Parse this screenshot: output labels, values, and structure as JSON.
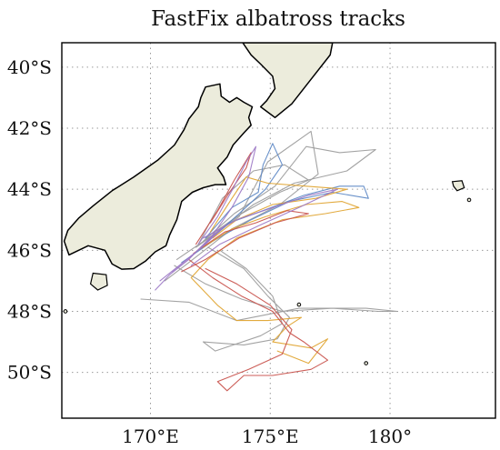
{
  "map": {
    "title": "FastFix albatross tracks",
    "lon_range": [
      166.3,
      184.4
    ],
    "lat_range": [
      -51.5,
      -39.2
    ],
    "lat_ticks": [
      {
        "value": -40,
        "label": "40°S"
      },
      {
        "value": -42,
        "label": "42°S"
      },
      {
        "value": -44,
        "label": "44°S"
      },
      {
        "value": -46,
        "label": "46°S"
      },
      {
        "value": -48,
        "label": "48°S"
      },
      {
        "value": -50,
        "label": "50°S"
      }
    ],
    "lon_ticks": [
      {
        "value": 170,
        "label": "170°E"
      },
      {
        "value": 175,
        "label": "175°E"
      },
      {
        "value": 180,
        "label": "180°"
      }
    ],
    "gridlines": true,
    "colors": {
      "land": "#ececdc",
      "coastline": "#000000",
      "gridline": "#9a9a9a"
    },
    "land": {
      "south_island": [
        [
          168.1,
          -46.0
        ],
        [
          167.4,
          -45.85
        ],
        [
          166.6,
          -46.15
        ],
        [
          166.4,
          -45.7
        ],
        [
          166.55,
          -45.35
        ],
        [
          167.0,
          -44.95
        ],
        [
          167.6,
          -44.55
        ],
        [
          168.4,
          -44.05
        ],
        [
          169.3,
          -43.6
        ],
        [
          170.3,
          -43.05
        ],
        [
          171.0,
          -42.55
        ],
        [
          171.4,
          -42.05
        ],
        [
          171.6,
          -41.7
        ],
        [
          172.0,
          -41.3
        ],
        [
          172.1,
          -41.0
        ],
        [
          172.3,
          -40.65
        ],
        [
          172.9,
          -40.55
        ],
        [
          172.95,
          -40.95
        ],
        [
          173.3,
          -41.15
        ],
        [
          173.6,
          -41.0
        ],
        [
          173.9,
          -41.15
        ],
        [
          174.25,
          -41.3
        ],
        [
          174.1,
          -41.65
        ],
        [
          174.2,
          -41.9
        ],
        [
          173.9,
          -42.15
        ],
        [
          173.45,
          -42.55
        ],
        [
          173.2,
          -42.95
        ],
        [
          172.8,
          -43.3
        ],
        [
          173.05,
          -43.6
        ],
        [
          173.15,
          -43.85
        ],
        [
          172.7,
          -43.85
        ],
        [
          172.2,
          -43.95
        ],
        [
          171.75,
          -44.1
        ],
        [
          171.3,
          -44.4
        ],
        [
          171.1,
          -45.0
        ],
        [
          170.8,
          -45.5
        ],
        [
          170.65,
          -45.85
        ],
        [
          170.2,
          -46.05
        ],
        [
          169.8,
          -46.35
        ],
        [
          169.3,
          -46.6
        ],
        [
          168.8,
          -46.62
        ],
        [
          168.4,
          -46.45
        ],
        [
          168.1,
          -46.0
        ]
      ],
      "north_island": [
        [
          174.6,
          -41.3
        ],
        [
          175.2,
          -41.65
        ],
        [
          175.9,
          -41.2
        ],
        [
          176.6,
          -40.5
        ],
        [
          177.5,
          -39.6
        ],
        [
          177.6,
          -39.2
        ],
        [
          173.85,
          -39.2
        ],
        [
          174.2,
          -39.6
        ],
        [
          174.6,
          -39.9
        ],
        [
          175.1,
          -40.3
        ],
        [
          175.2,
          -40.7
        ],
        [
          174.85,
          -41.1
        ],
        [
          174.6,
          -41.3
        ]
      ],
      "stewart_island": [
        [
          167.6,
          -46.75
        ],
        [
          168.15,
          -46.8
        ],
        [
          168.2,
          -47.15
        ],
        [
          167.8,
          -47.3
        ],
        [
          167.5,
          -47.1
        ],
        [
          167.6,
          -46.75
        ]
      ],
      "chatham_islands": [
        [
          182.6,
          -43.75
        ],
        [
          183.0,
          -43.72
        ],
        [
          183.1,
          -43.95
        ],
        [
          182.8,
          -44.05
        ],
        [
          182.65,
          -43.9
        ],
        [
          182.6,
          -43.75
        ]
      ],
      "small_islets": [
        [
          183.3,
          -44.35
        ],
        [
          166.45,
          -48.0
        ],
        [
          179.0,
          -49.7
        ],
        [
          176.2,
          -47.78
        ]
      ]
    }
  },
  "chart_data": {
    "type": "map-tracks",
    "title": "FastFix albatross tracks",
    "series": [
      {
        "color": "#9b9b9b",
        "points": [
          [
            172.2,
            -45.7
          ],
          [
            173.5,
            -44.8
          ],
          [
            175.2,
            -43.9
          ],
          [
            176.5,
            -42.6
          ],
          [
            177.9,
            -42.8
          ],
          [
            179.4,
            -42.7
          ],
          [
            178.2,
            -43.4
          ],
          [
            176.0,
            -43.8
          ],
          [
            174.3,
            -44.5
          ],
          [
            172.6,
            -45.5
          ],
          [
            171.1,
            -46.3
          ]
        ]
      },
      {
        "color": "#9b9b9b",
        "points": [
          [
            171.9,
            -45.9
          ],
          [
            173.7,
            -44.9
          ],
          [
            174.9,
            -43.1
          ],
          [
            176.7,
            -42.1
          ],
          [
            177.0,
            -43.5
          ],
          [
            175.4,
            -44.5
          ],
          [
            173.4,
            -45.3
          ],
          [
            171.6,
            -46.4
          ],
          [
            170.6,
            -47.0
          ]
        ]
      },
      {
        "color": "#9b9b9b",
        "points": [
          [
            171.0,
            -46.5
          ],
          [
            172.3,
            -47.1
          ],
          [
            173.8,
            -47.6
          ],
          [
            175.5,
            -48.0
          ],
          [
            177.6,
            -47.9
          ],
          [
            179.5,
            -48.0
          ],
          [
            180.3,
            -48.0
          ],
          [
            179.0,
            -47.9
          ],
          [
            176.2,
            -47.9
          ],
          [
            173.6,
            -48.3
          ],
          [
            171.6,
            -47.7
          ],
          [
            169.6,
            -47.6
          ]
        ]
      },
      {
        "color": "#9b9b9b",
        "points": [
          [
            172.4,
            -45.9
          ],
          [
            173.9,
            -46.6
          ],
          [
            174.9,
            -47.5
          ],
          [
            175.8,
            -48.2
          ],
          [
            175.3,
            -48.9
          ],
          [
            173.9,
            -49.1
          ],
          [
            172.2,
            -49.0
          ],
          [
            172.7,
            -49.3
          ],
          [
            174.6,
            -48.8
          ],
          [
            175.5,
            -48.4
          ],
          [
            175.1,
            -47.5
          ],
          [
            174.0,
            -46.6
          ],
          [
            172.9,
            -46.0
          ]
        ]
      },
      {
        "color": "#9b9b9b",
        "points": [
          [
            172.0,
            -45.8
          ],
          [
            173.0,
            -44.3
          ],
          [
            174.3,
            -43.4
          ],
          [
            175.6,
            -43.2
          ],
          [
            176.6,
            -43.7
          ],
          [
            175.4,
            -44.1
          ],
          [
            173.8,
            -44.8
          ],
          [
            172.3,
            -45.6
          ]
        ]
      },
      {
        "color": "#5b87c4",
        "points": [
          [
            172.1,
            -45.9
          ],
          [
            173.3,
            -45.1
          ],
          [
            174.7,
            -44.7
          ],
          [
            176.4,
            -44.2
          ],
          [
            177.9,
            -43.9
          ],
          [
            178.9,
            -43.9
          ],
          [
            179.1,
            -44.3
          ],
          [
            177.6,
            -44.1
          ],
          [
            175.8,
            -44.4
          ],
          [
            174.2,
            -45.0
          ],
          [
            172.6,
            -45.7
          ],
          [
            171.3,
            -46.4
          ]
        ]
      },
      {
        "color": "#5b87c4",
        "points": [
          [
            172.3,
            -45.6
          ],
          [
            173.4,
            -44.6
          ],
          [
            174.5,
            -44.1
          ],
          [
            174.7,
            -43.2
          ],
          [
            175.1,
            -42.5
          ],
          [
            175.5,
            -43.2
          ],
          [
            174.8,
            -44.0
          ],
          [
            173.7,
            -44.8
          ],
          [
            172.4,
            -45.7
          ]
        ]
      },
      {
        "color": "#e0a32e",
        "points": [
          [
            172.2,
            -45.9
          ],
          [
            173.4,
            -45.3
          ],
          [
            174.8,
            -44.9
          ],
          [
            176.5,
            -44.5
          ],
          [
            178.0,
            -44.4
          ],
          [
            178.7,
            -44.6
          ],
          [
            177.3,
            -44.8
          ],
          [
            175.5,
            -45.0
          ],
          [
            173.6,
            -45.6
          ],
          [
            172.4,
            -46.3
          ],
          [
            171.7,
            -46.9
          ],
          [
            172.8,
            -47.8
          ],
          [
            173.6,
            -48.3
          ],
          [
            174.9,
            -48.3
          ],
          [
            176.3,
            -48.2
          ],
          [
            175.7,
            -48.5
          ],
          [
            175.1,
            -49.0
          ],
          [
            176.7,
            -49.2
          ],
          [
            177.4,
            -48.9
          ],
          [
            176.6,
            -49.7
          ],
          [
            175.3,
            -49.3
          ]
        ]
      },
      {
        "color": "#e0a32e",
        "points": [
          [
            172.5,
            -45.4
          ],
          [
            173.4,
            -44.3
          ],
          [
            174.0,
            -43.6
          ],
          [
            174.9,
            -43.8
          ],
          [
            176.5,
            -43.9
          ],
          [
            178.2,
            -44.0
          ],
          [
            176.9,
            -44.3
          ],
          [
            175.1,
            -44.5
          ],
          [
            173.6,
            -45.0
          ],
          [
            172.6,
            -45.6
          ]
        ]
      },
      {
        "color": "#c8504a",
        "points": [
          [
            171.8,
            -46.1
          ],
          [
            173.1,
            -45.4
          ],
          [
            174.4,
            -45.1
          ],
          [
            175.7,
            -44.7
          ],
          [
            176.6,
            -44.8
          ],
          [
            175.2,
            -45.1
          ],
          [
            173.7,
            -45.6
          ],
          [
            172.3,
            -46.3
          ],
          [
            171.3,
            -46.7
          ]
        ]
      },
      {
        "color": "#c8504a",
        "points": [
          [
            171.6,
            -46.3
          ],
          [
            172.6,
            -46.9
          ],
          [
            173.8,
            -47.5
          ],
          [
            175.1,
            -48.0
          ],
          [
            175.8,
            -48.7
          ],
          [
            176.4,
            -49.0
          ],
          [
            177.4,
            -49.6
          ],
          [
            176.7,
            -49.9
          ],
          [
            175.1,
            -50.1
          ],
          [
            173.9,
            -50.1
          ],
          [
            173.2,
            -50.6
          ],
          [
            172.8,
            -50.3
          ],
          [
            174.1,
            -49.9
          ],
          [
            175.5,
            -49.4
          ],
          [
            175.9,
            -48.6
          ],
          [
            175.0,
            -47.8
          ],
          [
            173.6,
            -47.1
          ],
          [
            172.3,
            -46.6
          ]
        ]
      },
      {
        "color": "#c8504a",
        "points": [
          [
            172.5,
            -45.1
          ],
          [
            173.3,
            -44.1
          ],
          [
            174.0,
            -43.3
          ],
          [
            174.2,
            -42.8
          ],
          [
            173.5,
            -43.7
          ],
          [
            172.8,
            -44.7
          ],
          [
            171.9,
            -45.8
          ]
        ]
      },
      {
        "color": "#9c78c6",
        "points": [
          [
            172.0,
            -45.8
          ],
          [
            172.8,
            -44.9
          ],
          [
            173.5,
            -43.9
          ],
          [
            174.0,
            -43.1
          ],
          [
            174.4,
            -42.6
          ],
          [
            174.1,
            -43.6
          ],
          [
            173.4,
            -44.6
          ],
          [
            172.6,
            -45.5
          ],
          [
            171.6,
            -46.3
          ],
          [
            170.8,
            -46.8
          ],
          [
            170.2,
            -47.3
          ]
        ]
      },
      {
        "color": "#9c78c6",
        "points": [
          [
            172.2,
            -45.6
          ],
          [
            173.6,
            -45.0
          ],
          [
            175.1,
            -44.6
          ],
          [
            176.6,
            -44.2
          ],
          [
            177.8,
            -44.0
          ],
          [
            176.2,
            -44.6
          ],
          [
            174.5,
            -45.2
          ],
          [
            172.9,
            -45.8
          ],
          [
            171.7,
            -46.5
          ]
        ]
      },
      {
        "color": "#9c78c6",
        "points": [
          [
            170.9,
            -46.7
          ],
          [
            171.7,
            -46.2
          ],
          [
            172.5,
            -45.6
          ],
          [
            173.1,
            -45.2
          ],
          [
            172.3,
            -45.8
          ],
          [
            171.2,
            -46.5
          ],
          [
            170.4,
            -47.0
          ]
        ]
      }
    ]
  }
}
